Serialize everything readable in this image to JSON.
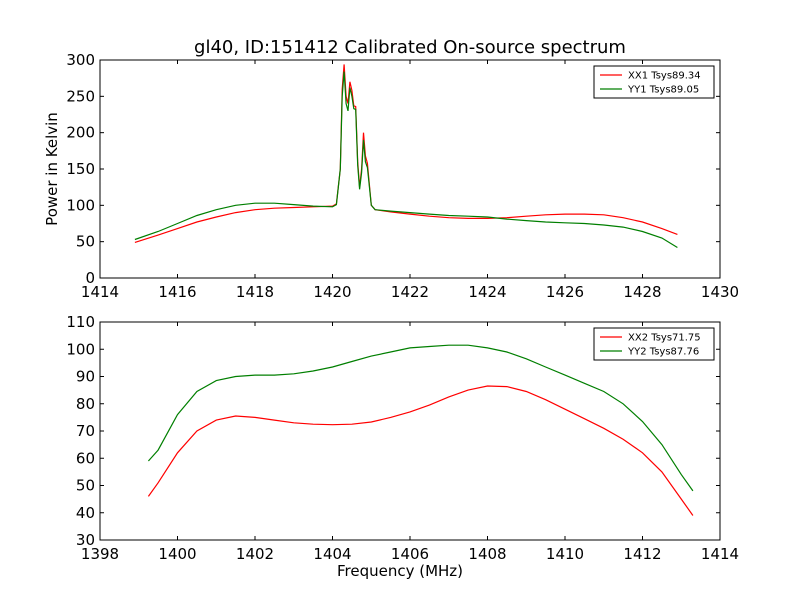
{
  "title": "gl40, ID:151412 Calibrated On-source spectrum",
  "colors": {
    "xx": "#ff0000",
    "yy": "#007f00"
  },
  "chart_data": [
    {
      "type": "line",
      "xlabel": "",
      "ylabel": "Power in Kelvin",
      "xlim": [
        1414,
        1430
      ],
      "ylim": [
        0,
        300
      ],
      "xticks": [
        1414,
        1416,
        1418,
        1420,
        1422,
        1424,
        1426,
        1428,
        1430
      ],
      "yticks": [
        0,
        50,
        100,
        150,
        200,
        250,
        300
      ],
      "legend": "top-right",
      "series": [
        {
          "name": "XX1 Tsys89.34",
          "color": "#ff0000",
          "points": [
            [
              1414.9,
              49
            ],
            [
              1415.5,
              59
            ],
            [
              1416,
              68
            ],
            [
              1416.5,
              77
            ],
            [
              1417,
              84
            ],
            [
              1417.5,
              90
            ],
            [
              1418,
              94
            ],
            [
              1418.5,
              96
            ],
            [
              1419,
              97
            ],
            [
              1419.5,
              98
            ],
            [
              1420,
              99
            ],
            [
              1420.1,
              102
            ],
            [
              1420.2,
              150
            ],
            [
              1420.25,
              260
            ],
            [
              1420.3,
              294
            ],
            [
              1420.35,
              250
            ],
            [
              1420.4,
              240
            ],
            [
              1420.45,
              270
            ],
            [
              1420.5,
              258
            ],
            [
              1420.55,
              237
            ],
            [
              1420.6,
              236
            ],
            [
              1420.65,
              160
            ],
            [
              1420.7,
              125
            ],
            [
              1420.75,
              150
            ],
            [
              1420.8,
              200
            ],
            [
              1420.85,
              168
            ],
            [
              1420.9,
              158
            ],
            [
              1421,
              100
            ],
            [
              1421.1,
              94
            ],
            [
              1421.5,
              91
            ],
            [
              1422,
              88
            ],
            [
              1422.5,
              85
            ],
            [
              1423,
              83
            ],
            [
              1423.5,
              82
            ],
            [
              1424,
              82
            ],
            [
              1424.5,
              83
            ],
            [
              1425,
              85
            ],
            [
              1425.5,
              87
            ],
            [
              1426,
              88
            ],
            [
              1426.5,
              88
            ],
            [
              1427,
              87
            ],
            [
              1427.5,
              83
            ],
            [
              1428,
              77
            ],
            [
              1428.5,
              68
            ],
            [
              1428.9,
              60
            ]
          ]
        },
        {
          "name": "YY1 Tsys89.05",
          "color": "#007f00",
          "points": [
            [
              1414.9,
              53
            ],
            [
              1415.5,
              64
            ],
            [
              1416,
              75
            ],
            [
              1416.5,
              86
            ],
            [
              1417,
              94
            ],
            [
              1417.5,
              100
            ],
            [
              1418,
              103
            ],
            [
              1418.5,
              103
            ],
            [
              1419,
              101
            ],
            [
              1419.5,
              99
            ],
            [
              1420,
              98
            ],
            [
              1420.1,
              101
            ],
            [
              1420.2,
              150
            ],
            [
              1420.25,
              250
            ],
            [
              1420.3,
              284
            ],
            [
              1420.35,
              240
            ],
            [
              1420.4,
              230
            ],
            [
              1420.45,
              262
            ],
            [
              1420.5,
              250
            ],
            [
              1420.55,
              233
            ],
            [
              1420.6,
              232
            ],
            [
              1420.65,
              155
            ],
            [
              1420.7,
              122
            ],
            [
              1420.75,
              145
            ],
            [
              1420.8,
              190
            ],
            [
              1420.85,
              160
            ],
            [
              1420.9,
              152
            ],
            [
              1421,
              100
            ],
            [
              1421.1,
              94
            ],
            [
              1421.5,
              92
            ],
            [
              1422,
              90
            ],
            [
              1422.5,
              88
            ],
            [
              1423,
              86
            ],
            [
              1423.5,
              85
            ],
            [
              1424,
              84
            ],
            [
              1424.5,
              81
            ],
            [
              1425,
              79
            ],
            [
              1425.5,
              77
            ],
            [
              1426,
              76
            ],
            [
              1426.5,
              75
            ],
            [
              1427,
              73
            ],
            [
              1427.5,
              70
            ],
            [
              1428,
              64
            ],
            [
              1428.5,
              55
            ],
            [
              1428.9,
              42
            ]
          ]
        }
      ]
    },
    {
      "type": "line",
      "xlabel": "Frequency (MHz)",
      "ylabel": "",
      "xlim": [
        1398,
        1414
      ],
      "ylim": [
        30,
        110
      ],
      "xticks": [
        1398,
        1400,
        1402,
        1404,
        1406,
        1408,
        1410,
        1412,
        1414
      ],
      "yticks": [
        30,
        40,
        50,
        60,
        70,
        80,
        90,
        100,
        110
      ],
      "legend": "top-right",
      "series": [
        {
          "name": "XX2 Tsys71.75",
          "color": "#ff0000",
          "points": [
            [
              1399.25,
              46
            ],
            [
              1399.5,
              51
            ],
            [
              1400,
              62
            ],
            [
              1400.5,
              70
            ],
            [
              1401,
              74
            ],
            [
              1401.5,
              75.5
            ],
            [
              1402,
              75
            ],
            [
              1402.5,
              74
            ],
            [
              1403,
              73
            ],
            [
              1403.5,
              72.5
            ],
            [
              1404,
              72.3
            ],
            [
              1404.5,
              72.5
            ],
            [
              1405,
              73.3
            ],
            [
              1405.5,
              75
            ],
            [
              1406,
              77
            ],
            [
              1406.5,
              79.5
            ],
            [
              1407,
              82.5
            ],
            [
              1407.5,
              85
            ],
            [
              1408,
              86.5
            ],
            [
              1408.5,
              86.3
            ],
            [
              1409,
              84.5
            ],
            [
              1409.5,
              81.5
            ],
            [
              1410,
              78
            ],
            [
              1410.5,
              74.5
            ],
            [
              1411,
              71
            ],
            [
              1411.5,
              67
            ],
            [
              1412,
              62
            ],
            [
              1412.5,
              55
            ],
            [
              1413,
              45
            ],
            [
              1413.3,
              39
            ]
          ]
        },
        {
          "name": "YY2 Tsys87.76",
          "color": "#007f00",
          "points": [
            [
              1399.25,
              59
            ],
            [
              1399.5,
              63
            ],
            [
              1400,
              76
            ],
            [
              1400.5,
              84.5
            ],
            [
              1401,
              88.5
            ],
            [
              1401.5,
              90
            ],
            [
              1402,
              90.5
            ],
            [
              1402.5,
              90.5
            ],
            [
              1403,
              91
            ],
            [
              1403.5,
              92
            ],
            [
              1404,
              93.5
            ],
            [
              1404.5,
              95.5
            ],
            [
              1405,
              97.5
            ],
            [
              1405.5,
              99
            ],
            [
              1406,
              100.5
            ],
            [
              1406.5,
              101
            ],
            [
              1407,
              101.5
            ],
            [
              1407.5,
              101.5
            ],
            [
              1408,
              100.5
            ],
            [
              1408.5,
              99
            ],
            [
              1409,
              96.5
            ],
            [
              1409.5,
              93.5
            ],
            [
              1410,
              90.5
            ],
            [
              1410.5,
              87.5
            ],
            [
              1411,
              84.5
            ],
            [
              1411.5,
              80
            ],
            [
              1412,
              73.5
            ],
            [
              1412.5,
              65
            ],
            [
              1413,
              54
            ],
            [
              1413.3,
              48
            ]
          ]
        }
      ]
    }
  ]
}
